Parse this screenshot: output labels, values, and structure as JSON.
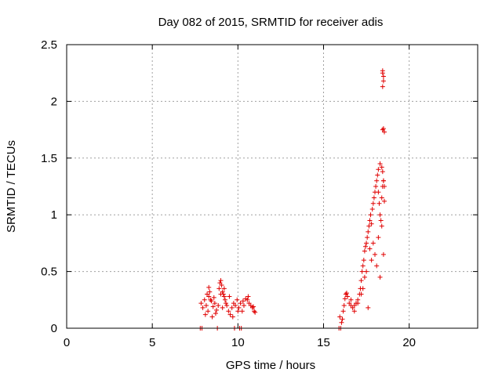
{
  "chart_data": {
    "type": "scatter",
    "title": "Day 082 of 2015, SRMTID for receiver adis",
    "xlabel": "GPS time / hours",
    "ylabel": "SRMTID / TECUs",
    "xlim": [
      0,
      24
    ],
    "ylim": [
      0,
      2.5
    ],
    "xticks": [
      0,
      5,
      10,
      15,
      20
    ],
    "yticks": [
      0,
      0.5,
      1,
      1.5,
      2,
      2.5
    ],
    "xtick_labels": [
      "0",
      "5",
      "10",
      "15",
      "20"
    ],
    "ytick_labels": [
      "0",
      "0.5",
      "1",
      "1.5",
      "2",
      "2.5"
    ],
    "grid": true,
    "marker": "+",
    "color": "#e00000",
    "series": [
      {
        "name": "SRMTID",
        "x": [
          7.8,
          7.9,
          8.8,
          9.8,
          10.1,
          10.2,
          15.9,
          16.0,
          7.85,
          7.95,
          8.05,
          8.15,
          8.25,
          8.3,
          8.35,
          8.45,
          8.55,
          8.65,
          8.75,
          8.85,
          8.9,
          8.95,
          9.0,
          9.05,
          9.1,
          9.15,
          9.2,
          9.25,
          9.3,
          9.35,
          9.45,
          9.55,
          9.65,
          9.75,
          9.85,
          9.95,
          10.05,
          10.15,
          10.25,
          10.35,
          10.45,
          10.55,
          10.65,
          10.75,
          10.85,
          10.95,
          11.0,
          8.1,
          8.2,
          8.3,
          8.4,
          8.5,
          8.6,
          8.7,
          9.0,
          9.1,
          9.2,
          9.5,
          9.7,
          10.0,
          10.3,
          10.6,
          10.9,
          15.95,
          16.05,
          16.1,
          16.15,
          16.2,
          16.25,
          16.3,
          16.35,
          16.4,
          16.5,
          16.6,
          16.7,
          16.8,
          16.9,
          17.0,
          17.1,
          17.15,
          17.2,
          17.25,
          17.3,
          17.35,
          17.4,
          17.45,
          17.5,
          17.55,
          17.6,
          17.65,
          17.7,
          17.75,
          17.8,
          17.85,
          17.9,
          17.95,
          18.0,
          18.05,
          18.1,
          18.15,
          18.2,
          18.25,
          18.3,
          18.35,
          18.4,
          18.45,
          18.5,
          18.55,
          16.6,
          16.8,
          17.0,
          17.2,
          17.4,
          17.6,
          17.8,
          18.0,
          18.2,
          18.4,
          17.3,
          17.5,
          17.7,
          17.9,
          18.1,
          18.3,
          18.5,
          18.2,
          18.3,
          18.4,
          18.45,
          18.5,
          18.55,
          18.45,
          18.5,
          18.5,
          18.45,
          18.45,
          18.5,
          18.45,
          18.55
        ],
        "y": [
          0,
          0,
          0,
          0,
          0,
          0,
          0,
          0,
          0.22,
          0.18,
          0.25,
          0.2,
          0.15,
          0.28,
          0.32,
          0.24,
          0.19,
          0.22,
          0.16,
          0.2,
          0.35,
          0.4,
          0.42,
          0.38,
          0.32,
          0.3,
          0.28,
          0.25,
          0.22,
          0.2,
          0.15,
          0.12,
          0.18,
          0.22,
          0.2,
          0.25,
          0.18,
          0.22,
          0.15,
          0.2,
          0.26,
          0.25,
          0.22,
          0.2,
          0.18,
          0.15,
          0.14,
          0.12,
          0.3,
          0.36,
          0.25,
          0.1,
          0.27,
          0.13,
          0.3,
          0.18,
          0.35,
          0.28,
          0.1,
          0.15,
          0.24,
          0.28,
          0.19,
          0.1,
          0.05,
          0.08,
          0.15,
          0.2,
          0.26,
          0.3,
          0.31,
          0.28,
          0.22,
          0.2,
          0.18,
          0.2,
          0.22,
          0.25,
          0.3,
          0.35,
          0.42,
          0.5,
          0.55,
          0.6,
          0.68,
          0.72,
          0.75,
          0.8,
          0.85,
          0.9,
          0.95,
          1.0,
          0.92,
          1.05,
          1.1,
          1.15,
          1.2,
          1.25,
          1.3,
          1.35,
          1.2,
          1.1,
          1.0,
          0.95,
          1.15,
          1.25,
          1.3,
          1.12,
          0.25,
          0.15,
          0.22,
          0.3,
          0.45,
          0.18,
          0.6,
          0.65,
          0.8,
          0.9,
          0.35,
          0.5,
          0.7,
          0.75,
          0.55,
          0.45,
          0.65,
          1.4,
          1.45,
          1.42,
          1.38,
          1.3,
          1.25,
          2.27,
          2.22,
          2.18,
          2.13,
          2.25,
          1.76,
          1.75,
          1.73
        ]
      }
    ]
  }
}
